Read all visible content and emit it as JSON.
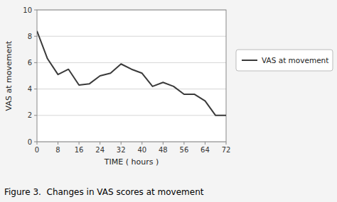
{
  "chart_data": {
    "type": "line",
    "x": [
      0,
      4,
      8,
      12,
      16,
      20,
      24,
      28,
      32,
      36,
      40,
      44,
      48,
      52,
      56,
      60,
      64,
      68,
      72
    ],
    "series": [
      {
        "name": "VAS at movement",
        "color": "#3a3a3a",
        "values": [
          8.4,
          6.3,
          5.1,
          5.5,
          4.3,
          4.4,
          5.0,
          5.2,
          5.9,
          5.5,
          5.2,
          4.2,
          4.5,
          4.2,
          3.6,
          3.6,
          3.1,
          2.0,
          2.0
        ]
      }
    ],
    "x_label": "TIME ( hours )",
    "y_label": "VAS at movement",
    "xlim": [
      0,
      72
    ],
    "ylim": [
      0,
      10
    ],
    "xticks": [
      0,
      8,
      16,
      24,
      32,
      40,
      48,
      56,
      64,
      72
    ],
    "yticks": [
      0,
      2,
      4,
      6,
      8,
      10
    ],
    "grid": "y",
    "legend": "right",
    "annotations": [
      "Figure 3.  Changes in VAS scores at movement"
    ]
  }
}
